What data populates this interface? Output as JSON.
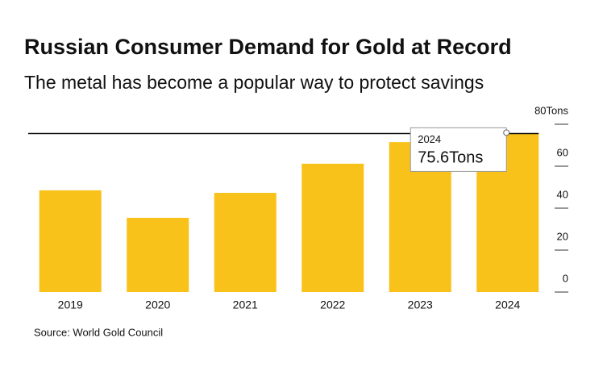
{
  "chart_data": {
    "type": "bar",
    "title": "Russian Consumer Demand for Gold at Record",
    "subtitle": "The metal has become a popular way to protect savings",
    "categories": [
      "2019",
      "2020",
      "2021",
      "2022",
      "2023",
      "2024"
    ],
    "values": [
      48.5,
      35.4,
      47.3,
      61.2,
      71.5,
      75.6
    ],
    "value_labels": [
      null,
      null,
      null,
      null,
      null,
      "75.6Tons"
    ],
    "color": "#f9c21b",
    "ylim": [
      0,
      80
    ],
    "yticks": [
      0,
      20,
      40,
      60,
      {
        "value": 80,
        "label": "80Tons"
      }
    ],
    "source": "Source: World Gold Council"
  }
}
